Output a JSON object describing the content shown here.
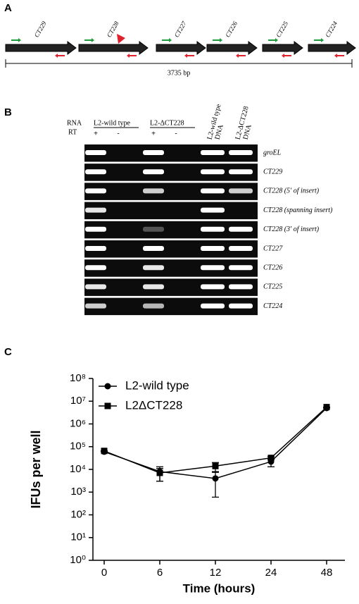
{
  "panel_a": {
    "label": "A",
    "genes": [
      "CT229",
      "CT228",
      "CT227",
      "CT226",
      "CT225",
      "CT224"
    ],
    "scale_label": "3735 bp"
  },
  "panel_b": {
    "label": "B",
    "rna_label": "RNA",
    "rt_label": "RT",
    "groups": [
      "L2-wild type",
      "L2-ΔCT228"
    ],
    "rt_signs": [
      "+",
      "-",
      "+",
      "-"
    ],
    "dna_lanes": [
      [
        "L2-wild type",
        "DNA"
      ],
      [
        "L2-ΔCT228",
        "DNA"
      ]
    ],
    "rows": [
      "groEL",
      "CT229",
      "CT228 (5' of insert)",
      "CT228 (spanning insert)",
      "CT228 (3' of insert)",
      "CT227",
      "CT226",
      "CT225",
      "CT224"
    ]
  },
  "chart_data": {
    "type": "line",
    "panel_label": "C",
    "x_label": "Time (hours)",
    "y_label": "IFUs per well",
    "categories": [
      "0",
      "6",
      "12",
      "24",
      "48"
    ],
    "log_scale": true,
    "ylim": [
      1,
      100000000
    ],
    "yticks": [
      {
        "value": 1,
        "label": "10⁰"
      },
      {
        "value": 10,
        "label": "10¹"
      },
      {
        "value": 100,
        "label": "10²"
      },
      {
        "value": 1000,
        "label": "10³"
      },
      {
        "value": 10000,
        "label": "10⁴"
      },
      {
        "value": 100000,
        "label": "10⁵"
      },
      {
        "value": 1000000,
        "label": "10⁶"
      },
      {
        "value": 10000000,
        "label": "10⁷"
      },
      {
        "value": 100000000,
        "label": "10⁸"
      }
    ],
    "series": [
      {
        "name": "L2-wild type",
        "color": "#000000",
        "marker": "circle",
        "values": [
          60000,
          8000,
          4000,
          22000,
          5000000
        ],
        "errors": [
          0,
          5000,
          3400,
          9000,
          0
        ]
      },
      {
        "name": "L2ΔCT228",
        "color": "#000000",
        "marker": "square",
        "values": [
          65000,
          7000,
          14000,
          32000,
          5500000
        ],
        "errors": [
          0,
          4000,
          6000,
          5000,
          0
        ]
      }
    ]
  }
}
